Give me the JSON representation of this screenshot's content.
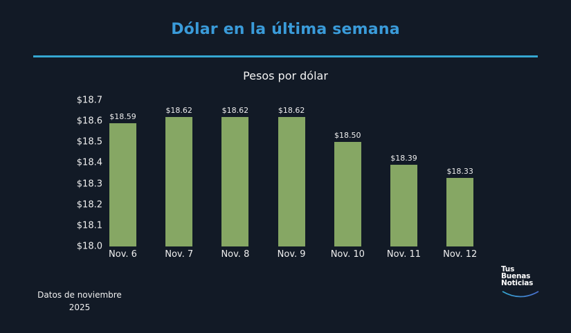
{
  "header": {
    "title": "Dólar en la última semana",
    "subtitle": "Pesos por dólar"
  },
  "footer": {
    "note_line1": "Datos de noviembre",
    "note_line2": "2025",
    "logo_lines": [
      "Tus",
      "Buenas",
      "Noticias"
    ]
  },
  "colors": {
    "background": "#121a26",
    "title": "#3a9bd9",
    "rule": "#35a7d1",
    "bar": "#86a764"
  },
  "chart_data": {
    "type": "bar",
    "title": "Dólar en la última semana",
    "subtitle": "Pesos por dólar",
    "xlabel": "",
    "ylabel": "",
    "categories": [
      "Nov. 6",
      "Nov. 7",
      "Nov. 8",
      "Nov. 9",
      "Nov. 10",
      "Nov. 11",
      "Nov. 12"
    ],
    "values": [
      18.59,
      18.62,
      18.62,
      18.62,
      18.5,
      18.39,
      18.33
    ],
    "value_labels": [
      "$18.59",
      "$18.62",
      "$18.62",
      "$18.62",
      "$18.50",
      "$18.39",
      "$18.33"
    ],
    "ylim": [
      18.0,
      18.7
    ],
    "yticks": [
      "$18.0",
      "$18.1",
      "$18.2",
      "$18.3",
      "$18.4",
      "$18.5",
      "$18.6",
      "$18.7"
    ],
    "grid": false,
    "legend": null
  }
}
